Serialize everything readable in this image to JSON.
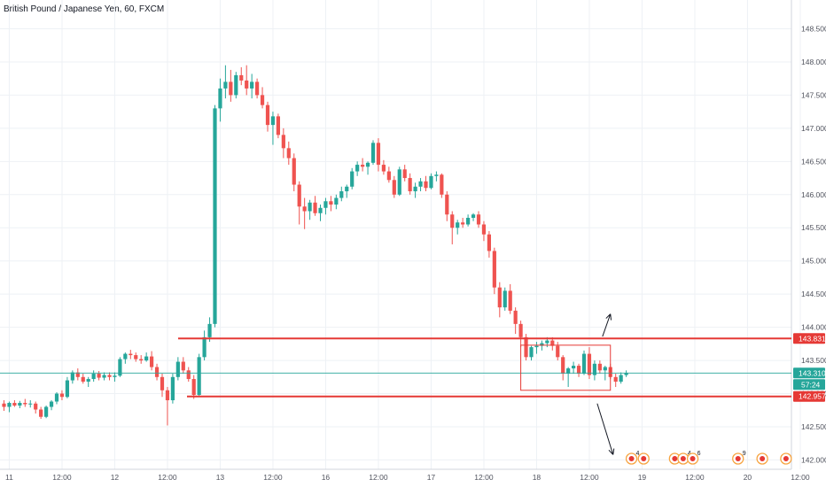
{
  "header": {
    "title": "British Pound / Japanese Yen, 60, FXCM"
  },
  "colors": {
    "up": "#26a69a",
    "down": "#ef5350",
    "level": "#e53935",
    "current": "#26a69a",
    "grid": "#eef1f5",
    "axis": "#50535e",
    "arrow": "#131722"
  },
  "chart_data": {
    "type": "candlestick",
    "title": "British Pound / Japanese Yen, 60, FXCM",
    "symbol": "GBPJPY",
    "timeframe": "60",
    "source": "FXCM",
    "ylim": [
      141.95,
      148.6
    ],
    "y_ticks": [
      "148.500",
      "148.000",
      "147.500",
      "147.000",
      "146.500",
      "146.000",
      "145.500",
      "145.000",
      "144.500",
      "144.000",
      "143.500",
      "143.000",
      "142.500",
      "142.000"
    ],
    "x_ticks": [
      {
        "label": "11",
        "bar": 1
      },
      {
        "label": "12:00",
        "bar": 11
      },
      {
        "label": "12",
        "bar": 21
      },
      {
        "label": "12:00",
        "bar": 31
      },
      {
        "label": "13",
        "bar": 41
      },
      {
        "label": "12:00",
        "bar": 51
      },
      {
        "label": "16",
        "bar": 61
      },
      {
        "label": "12:00",
        "bar": 71
      },
      {
        "label": "17",
        "bar": 81
      },
      {
        "label": "12:00",
        "bar": 91
      },
      {
        "label": "18",
        "bar": 101
      },
      {
        "label": "12:00",
        "bar": 111
      },
      {
        "label": "19",
        "bar": 121
      },
      {
        "label": "12:00",
        "bar": 131
      },
      {
        "label": "20",
        "bar": 141
      },
      {
        "label": "12:00",
        "bar": 151
      }
    ],
    "levels": [
      {
        "name": "resistance",
        "value": 143.831,
        "label": "143.831"
      },
      {
        "name": "support",
        "value": 142.957,
        "label": "142.957"
      }
    ],
    "current_price": {
      "value": 143.31,
      "label": "143.310",
      "countdown": "57:24"
    },
    "range_box": {
      "bar_start": 98,
      "bar_end": 115,
      "y_high": 143.73,
      "y_low": 143.05
    },
    "arrows": [
      {
        "direction": "up",
        "bar_start": 113.5,
        "y_start": 143.86,
        "bar_end": 115,
        "y_end": 144.2
      },
      {
        "direction": "down",
        "bar_start": 112.5,
        "y_start": 142.85,
        "bar_end": 115.5,
        "y_end": 142.08
      }
    ],
    "events": [
      {
        "bar": 119,
        "count": "4"
      },
      {
        "bar": 121.3,
        "count": ""
      },
      {
        "bar": 127.2,
        "count": ""
      },
      {
        "bar": 128.8,
        "count": "4"
      },
      {
        "bar": 130.6,
        "count": "6"
      },
      {
        "bar": 139.2,
        "count": "9"
      },
      {
        "bar": 143.8,
        "count": ""
      },
      {
        "bar": 148.3,
        "count": ""
      }
    ],
    "ohlc": [
      [
        142.85,
        142.9,
        142.74,
        142.8
      ],
      [
        142.8,
        142.88,
        142.72,
        142.86
      ],
      [
        142.86,
        142.9,
        142.8,
        142.82
      ],
      [
        142.82,
        142.89,
        142.78,
        142.86
      ],
      [
        142.86,
        142.92,
        142.8,
        142.84
      ],
      [
        142.84,
        142.9,
        142.79,
        142.85
      ],
      [
        142.85,
        142.88,
        142.7,
        142.76
      ],
      [
        142.76,
        142.8,
        142.62,
        142.65
      ],
      [
        142.65,
        142.82,
        142.63,
        142.8
      ],
      [
        142.8,
        142.9,
        142.75,
        142.88
      ],
      [
        142.88,
        143.02,
        142.84,
        143.0
      ],
      [
        143.0,
        143.05,
        142.9,
        142.95
      ],
      [
        142.95,
        143.25,
        142.93,
        143.2
      ],
      [
        143.2,
        143.35,
        143.15,
        143.32
      ],
      [
        143.32,
        143.38,
        143.2,
        143.25
      ],
      [
        143.25,
        143.3,
        143.15,
        143.18
      ],
      [
        143.18,
        143.25,
        143.1,
        143.22
      ],
      [
        143.22,
        143.35,
        143.18,
        143.3
      ],
      [
        143.3,
        143.34,
        143.2,
        143.24
      ],
      [
        143.24,
        143.32,
        143.2,
        143.28
      ],
      [
        143.28,
        143.32,
        143.2,
        143.25
      ],
      [
        143.25,
        143.32,
        143.18,
        143.27
      ],
      [
        143.27,
        143.55,
        143.25,
        143.52
      ],
      [
        143.52,
        143.62,
        143.45,
        143.6
      ],
      [
        143.6,
        143.66,
        143.52,
        143.58
      ],
      [
        143.58,
        143.62,
        143.48,
        143.52
      ],
      [
        143.52,
        143.58,
        143.45,
        143.5
      ],
      [
        143.5,
        143.62,
        143.48,
        143.56
      ],
      [
        143.56,
        143.64,
        143.35,
        143.4
      ],
      [
        143.4,
        143.45,
        143.2,
        143.25
      ],
      [
        143.25,
        143.3,
        142.95,
        143.05
      ],
      [
        143.05,
        143.1,
        142.52,
        142.9
      ],
      [
        142.9,
        143.3,
        142.85,
        143.25
      ],
      [
        143.25,
        143.55,
        143.2,
        143.48
      ],
      [
        143.48,
        143.55,
        143.3,
        143.35
      ],
      [
        143.35,
        143.4,
        143.18,
        143.22
      ],
      [
        143.22,
        143.28,
        142.92,
        142.98
      ],
      [
        142.98,
        143.6,
        142.95,
        143.55
      ],
      [
        143.55,
        143.95,
        143.5,
        143.85
      ],
      [
        143.85,
        144.15,
        143.78,
        144.05
      ],
      [
        144.05,
        147.35,
        144.0,
        147.3
      ],
      [
        147.3,
        147.75,
        147.1,
        147.6
      ],
      [
        147.6,
        147.95,
        147.45,
        147.7
      ],
      [
        147.7,
        147.88,
        147.4,
        147.5
      ],
      [
        147.5,
        147.85,
        147.45,
        147.8
      ],
      [
        147.8,
        147.92,
        147.65,
        147.72
      ],
      [
        147.72,
        147.95,
        147.5,
        147.6
      ],
      [
        147.6,
        147.82,
        147.45,
        147.7
      ],
      [
        147.7,
        147.75,
        147.45,
        147.5
      ],
      [
        147.5,
        147.62,
        147.3,
        147.35
      ],
      [
        147.35,
        147.4,
        146.95,
        147.05
      ],
      [
        147.05,
        147.25,
        146.75,
        147.18
      ],
      [
        147.18,
        147.22,
        146.85,
        146.9
      ],
      [
        146.9,
        147.0,
        146.55,
        146.7
      ],
      [
        146.7,
        146.8,
        146.45,
        146.55
      ],
      [
        146.55,
        146.62,
        146.05,
        146.15
      ],
      [
        146.15,
        146.2,
        145.55,
        145.82
      ],
      [
        145.82,
        145.95,
        145.48,
        145.75
      ],
      [
        145.75,
        145.92,
        145.62,
        145.88
      ],
      [
        145.88,
        145.98,
        145.68,
        145.72
      ],
      [
        145.72,
        145.85,
        145.6,
        145.8
      ],
      [
        145.8,
        145.95,
        145.7,
        145.9
      ],
      [
        145.9,
        145.98,
        145.75,
        145.85
      ],
      [
        145.85,
        146.0,
        145.78,
        145.95
      ],
      [
        145.95,
        146.12,
        145.9,
        146.05
      ],
      [
        146.05,
        146.15,
        145.95,
        146.12
      ],
      [
        146.12,
        146.4,
        146.08,
        146.35
      ],
      [
        146.35,
        146.5,
        146.28,
        146.45
      ],
      [
        146.45,
        146.55,
        146.35,
        146.42
      ],
      [
        146.42,
        146.5,
        146.3,
        146.48
      ],
      [
        146.48,
        146.82,
        146.45,
        146.78
      ],
      [
        146.78,
        146.85,
        146.35,
        146.45
      ],
      [
        146.45,
        146.52,
        146.3,
        146.35
      ],
      [
        146.35,
        146.42,
        146.18,
        146.22
      ],
      [
        146.22,
        146.28,
        145.95,
        146.0
      ],
      [
        146.0,
        146.42,
        145.98,
        146.38
      ],
      [
        146.38,
        146.45,
        146.2,
        146.25
      ],
      [
        146.25,
        146.32,
        146.0,
        146.05
      ],
      [
        146.05,
        146.18,
        145.95,
        146.12
      ],
      [
        146.12,
        146.25,
        146.05,
        146.2
      ],
      [
        146.2,
        146.28,
        146.05,
        146.1
      ],
      [
        146.1,
        146.32,
        146.08,
        146.28
      ],
      [
        146.28,
        146.35,
        146.2,
        146.3
      ],
      [
        146.3,
        146.32,
        145.95,
        146.0
      ],
      [
        146.0,
        146.05,
        145.6,
        145.7
      ],
      [
        145.7,
        145.75,
        145.25,
        145.5
      ],
      [
        145.5,
        145.62,
        145.4,
        145.58
      ],
      [
        145.58,
        145.65,
        145.5,
        145.55
      ],
      [
        145.55,
        145.7,
        145.52,
        145.65
      ],
      [
        145.65,
        145.72,
        145.6,
        145.7
      ],
      [
        145.7,
        145.75,
        145.5,
        145.55
      ],
      [
        145.55,
        145.6,
        145.3,
        145.4
      ],
      [
        145.4,
        145.45,
        145.05,
        145.15
      ],
      [
        145.15,
        145.2,
        144.5,
        144.6
      ],
      [
        144.6,
        144.68,
        144.15,
        144.3
      ],
      [
        144.3,
        144.6,
        144.25,
        144.55
      ],
      [
        144.55,
        144.65,
        144.2,
        144.25
      ],
      [
        144.25,
        144.3,
        143.9,
        144.05
      ],
      [
        144.05,
        144.1,
        143.7,
        143.85
      ],
      [
        143.85,
        143.9,
        143.5,
        143.55
      ],
      [
        143.55,
        143.72,
        143.5,
        143.7
      ],
      [
        143.7,
        143.78,
        143.6,
        143.72
      ],
      [
        143.72,
        143.8,
        143.65,
        143.76
      ],
      [
        143.76,
        143.85,
        143.7,
        143.8
      ],
      [
        143.8,
        143.85,
        143.65,
        143.72
      ],
      [
        143.72,
        143.78,
        143.5,
        143.55
      ],
      [
        143.55,
        143.58,
        143.2,
        143.3
      ],
      [
        143.3,
        143.4,
        143.1,
        143.38
      ],
      [
        143.38,
        143.48,
        143.3,
        143.42
      ],
      [
        143.42,
        143.45,
        143.25,
        143.3
      ],
      [
        143.3,
        143.65,
        143.28,
        143.6
      ],
      [
        143.6,
        143.7,
        143.22,
        143.28
      ],
      [
        143.28,
        143.5,
        143.2,
        143.45
      ],
      [
        143.45,
        143.5,
        143.3,
        143.35
      ],
      [
        143.35,
        143.42,
        143.2,
        143.4
      ],
      [
        143.4,
        143.45,
        143.22,
        143.25
      ],
      [
        143.25,
        143.3,
        143.1,
        143.18
      ],
      [
        143.18,
        143.32,
        143.15,
        143.28
      ],
      [
        143.28,
        143.35,
        143.25,
        143.31
      ]
    ]
  }
}
